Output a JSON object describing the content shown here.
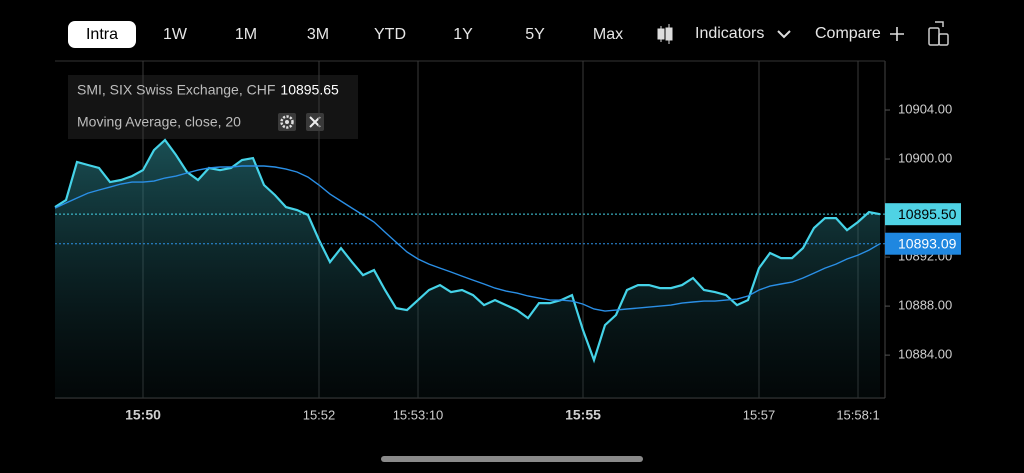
{
  "toolbar": {
    "ranges": [
      "Intra",
      "1W",
      "1M",
      "3M",
      "YTD",
      "1Y",
      "5Y",
      "Max"
    ],
    "active": 0,
    "indicators": "Indicators",
    "compare": "Compare"
  },
  "chart_data": {
    "type": "line",
    "legend": [
      {
        "text": "SMI, SIX Swiss Exchange, CHF",
        "value": "10895.65"
      },
      {
        "text": "Moving Average, close, 20"
      }
    ],
    "categories": [
      null,
      null,
      null,
      null,
      null,
      null,
      null,
      null,
      "15:50",
      null,
      null,
      null,
      null,
      null,
      null,
      null,
      null,
      null,
      null,
      null,
      null,
      null,
      null,
      null,
      "15:52",
      null,
      null,
      null,
      null,
      null,
      null,
      null,
      null,
      "15:53:10",
      null,
      null,
      null,
      null,
      null,
      null,
      null,
      null,
      null,
      null,
      null,
      null,
      null,
      null,
      "15:55",
      null,
      null,
      null,
      null,
      null,
      null,
      null,
      null,
      null,
      null,
      null,
      null,
      null,
      null,
      null,
      "15:57",
      null,
      null,
      null,
      null,
      null,
      null,
      null,
      null,
      "15:58:1",
      null,
      null
    ],
    "series": [
      {
        "color": "#45d3e8",
        "values": [
          10896.08,
          10896.65,
          10899.76,
          10899.51,
          10899.27,
          10898.12,
          10898.29,
          10898.61,
          10899.1,
          10900.73,
          10901.55,
          10900.33,
          10898.94,
          10898.29,
          10899.27,
          10899.1,
          10899.27,
          10899.92,
          10900.08,
          10897.88,
          10897.06,
          10896.08,
          10895.84,
          10895.43,
          10893.39,
          10891.59,
          10892.73,
          10891.59,
          10890.53,
          10890.94,
          10889.31,
          10887.84,
          10887.67,
          10888.49,
          10889.31,
          10889.71,
          10889.14,
          10889.31,
          10888.9,
          10888.08,
          10888.49,
          10888.08,
          10887.67,
          10887.02,
          10888.24,
          10888.24,
          10888.49,
          10888.9,
          10886.04,
          10883.59,
          10886.45,
          10887.27,
          10889.31,
          10889.71,
          10889.71,
          10889.47,
          10889.47,
          10889.71,
          10890.29,
          10889.31,
          10889.14,
          10888.9,
          10888.08,
          10888.49,
          10891.1,
          10892.33,
          10891.92,
          10891.92,
          10892.73,
          10894.37,
          10895.18,
          10895.18,
          10894.2,
          10894.86,
          10895.67,
          10895.5
        ],
        "badge": "10895.50",
        "badge_color": "#4fd2e4",
        "fill": true
      },
      {
        "color": "#2a8fe6",
        "values": [
          10896.0,
          10896.41,
          10896.82,
          10897.22,
          10897.47,
          10897.71,
          10897.96,
          10898.12,
          10898.12,
          10898.2,
          10898.45,
          10898.61,
          10898.86,
          10899.1,
          10899.27,
          10899.35,
          10899.35,
          10899.43,
          10899.43,
          10899.43,
          10899.35,
          10899.18,
          10898.94,
          10898.53,
          10897.88,
          10897.14,
          10896.57,
          10896.0,
          10895.43,
          10894.86,
          10894.04,
          10893.22,
          10892.41,
          10891.84,
          10891.43,
          10891.1,
          10890.78,
          10890.45,
          10890.12,
          10889.8,
          10889.47,
          10889.22,
          10889.06,
          10888.82,
          10888.65,
          10888.49,
          10888.49,
          10888.41,
          10888.16,
          10887.76,
          10887.59,
          10887.67,
          10887.76,
          10887.84,
          10887.92,
          10888.0,
          10888.08,
          10888.24,
          10888.33,
          10888.41,
          10888.41,
          10888.49,
          10888.57,
          10888.82,
          10889.31,
          10889.63,
          10889.8,
          10889.96,
          10890.29,
          10890.69,
          10891.1,
          10891.43,
          10891.84,
          10892.16,
          10892.57,
          10893.09
        ],
        "badge": "10893.09",
        "badge_color": "#1f87e0",
        "fill": false
      }
    ],
    "ylim": [
      10880.5,
      10908
    ],
    "yticks": [
      {
        "value": 10904,
        "label": "10904.00"
      },
      {
        "value": 10900,
        "label": "10900.00"
      },
      {
        "value": 10892,
        "label": "10892.00"
      },
      {
        "value": 10888,
        "label": "10888.00"
      },
      {
        "value": 10884,
        "label": "10884.00"
      }
    ],
    "grid": true
  }
}
